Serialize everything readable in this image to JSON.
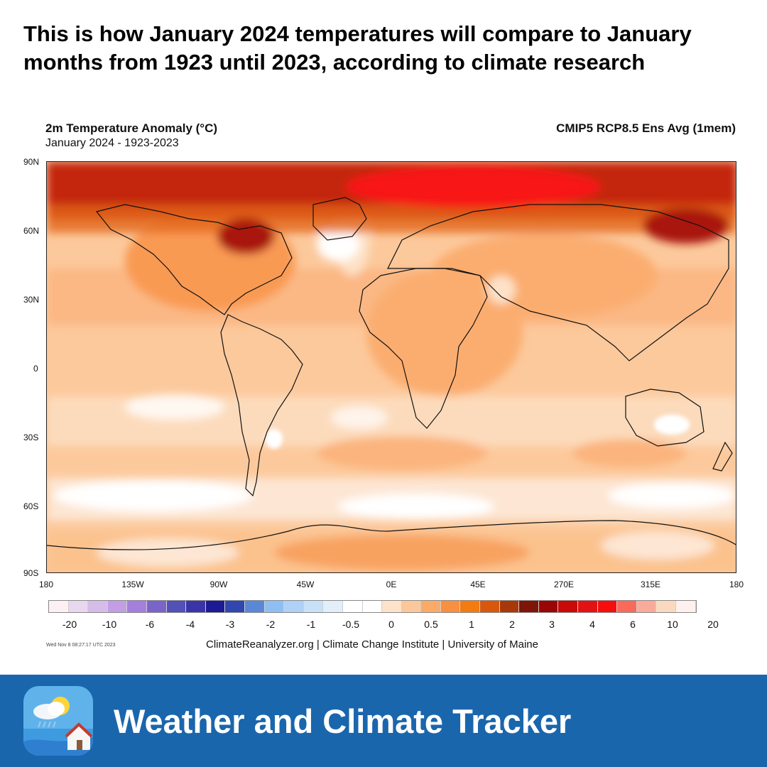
{
  "headline": "This is how January 2024 temperatures will compare to January months from 1923 until 2023, according to climate research",
  "map": {
    "title": "2m Temperature Anomaly (°C)",
    "subtitle": "January 2024 - 1923-2023",
    "model": "CMIP5 RCP8.5 Ens Avg (1mem)",
    "lat_labels": [
      "90N",
      "60N",
      "30N",
      "0",
      "30S",
      "60S",
      "90S"
    ],
    "lon_labels": [
      "180",
      "135W",
      "90W",
      "45W",
      "0E",
      "45E",
      "270E",
      "315E",
      "180"
    ]
  },
  "colorbar": {
    "colors": [
      "#fdf0f2",
      "#e9d7ef",
      "#d6bce9",
      "#c39ee4",
      "#a57fdc",
      "#7b64c9",
      "#5151b8",
      "#3b34a8",
      "#1c1a95",
      "#2f47ae",
      "#5b88d6",
      "#8fbff2",
      "#aed1f5",
      "#c7e1f8",
      "#e2effb",
      "#ffffff",
      "#ffffff",
      "#fde3c9",
      "#fcc79a",
      "#fbaa68",
      "#f79040",
      "#f47a12",
      "#d9570a",
      "#a8380a",
      "#7d1509",
      "#9a0505",
      "#c90808",
      "#e21212",
      "#f80d0d",
      "#f96a5a",
      "#f9ab9b",
      "#fbd9bf",
      "#fdf0ef"
    ],
    "labels": [
      "-20",
      "-10",
      "-6",
      "-4",
      "-3",
      "-2",
      "-1",
      "-0.5",
      "0",
      "0.5",
      "1",
      "2",
      "3",
      "4",
      "6",
      "10",
      "20"
    ]
  },
  "timestamp": "Wed Nov  8 08:27:17 UTC 2023",
  "credit": "ClimateReanalyzer.org | Climate Change Institute | University of Maine",
  "brand": {
    "name": "Weather and Climate Tracker",
    "icon": "weather-app-icon",
    "color": "#1a66ad"
  }
}
